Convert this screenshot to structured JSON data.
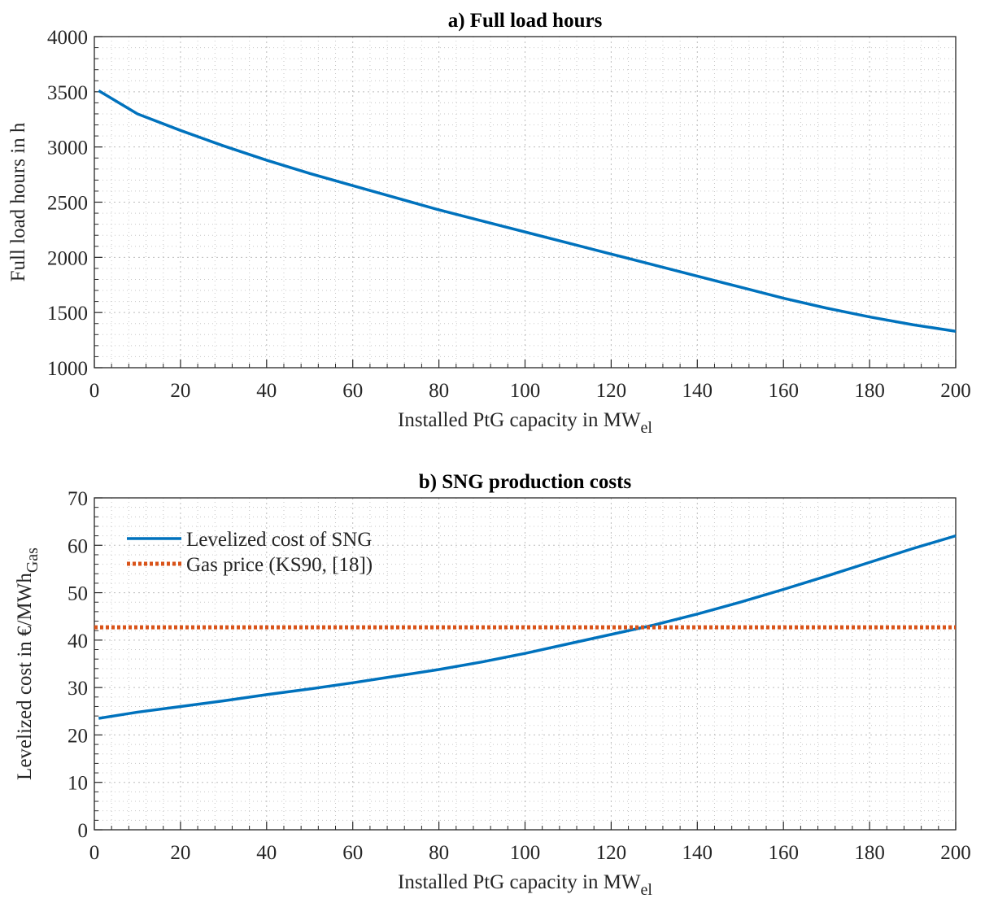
{
  "chart_data": [
    {
      "type": "line",
      "title": "a) Full load hours",
      "xlabel": {
        "text": "Installed PtG capacity in MW",
        "subscript": "el"
      },
      "ylabel": {
        "text": "Full load hours in h"
      },
      "x": [
        1,
        10,
        20,
        30,
        40,
        50,
        60,
        70,
        80,
        90,
        100,
        110,
        120,
        130,
        140,
        150,
        160,
        170,
        180,
        190,
        200
      ],
      "series": [
        {
          "color": "#0072bd",
          "style": "solid",
          "values": [
            3510,
            3300,
            3150,
            3010,
            2880,
            2760,
            2650,
            2540,
            2430,
            2330,
            2230,
            2130,
            2030,
            1930,
            1830,
            1730,
            1630,
            1540,
            1460,
            1390,
            1330
          ]
        }
      ],
      "xlim": [
        0,
        200
      ],
      "xticks": [
        0,
        20,
        40,
        60,
        80,
        100,
        120,
        140,
        160,
        180,
        200
      ],
      "ylim": [
        1000,
        4000
      ],
      "yticks": [
        1000,
        1500,
        2000,
        2500,
        3000,
        3500,
        4000
      ],
      "grid": true,
      "xminor": 4,
      "yminor": 5
    },
    {
      "type": "line",
      "title": "b) SNG production costs",
      "xlabel": {
        "text": "Installed PtG capacity in MW",
        "subscript": "el"
      },
      "ylabel": {
        "text": "Levelized cost in €/MWh",
        "subscript": "Gas"
      },
      "x": [
        1,
        10,
        20,
        30,
        40,
        50,
        60,
        70,
        80,
        90,
        100,
        110,
        120,
        130,
        140,
        150,
        160,
        170,
        180,
        190,
        200
      ],
      "series": [
        {
          "name": "Levelized cost of SNG",
          "color": "#0072bd",
          "style": "solid",
          "values": [
            23.5,
            24.8,
            26,
            27.2,
            28.5,
            29.7,
            31,
            32.4,
            33.8,
            35.4,
            37.2,
            39.2,
            41.2,
            43.2,
            45.5,
            48,
            50.7,
            53.5,
            56.4,
            59.3,
            62
          ]
        },
        {
          "name": "Gas price (KS90, [18])",
          "color": "#d95319",
          "style": "dotted",
          "x": [
            0,
            200
          ],
          "values": [
            42.7,
            42.7
          ]
        }
      ],
      "xlim": [
        0,
        200
      ],
      "xticks": [
        0,
        20,
        40,
        60,
        80,
        100,
        120,
        140,
        160,
        180,
        200
      ],
      "ylim": [
        0,
        70
      ],
      "yticks": [
        0,
        10,
        20,
        30,
        40,
        50,
        60,
        70
      ],
      "grid": true,
      "xminor": 4,
      "yminor": 5,
      "legend": "upper left"
    }
  ]
}
